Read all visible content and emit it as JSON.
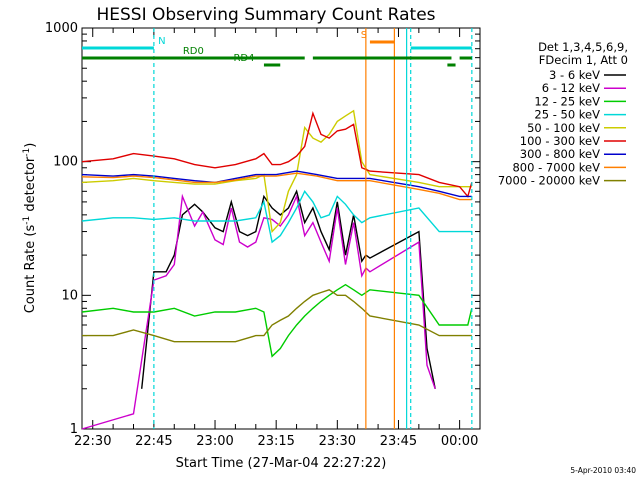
{
  "chart_data": {
    "type": "line",
    "title": "HESSI Observing Summary Count Rates",
    "xlabel": "Start Time (27-Mar-04 22:27:22)",
    "ylabel": "Count Rate (s",
    "ylabel_unit": "detector",
    "ylabel_exp": "-1",
    "y_scale": "log",
    "ylim": [
      1,
      1000
    ],
    "xlim": [
      "22:27:22",
      "00:05:00"
    ],
    "x_ticks": [
      "22:30",
      "22:45",
      "23:00",
      "23:15",
      "23:30",
      "23:45",
      "00:00"
    ],
    "y_ticks": [
      "1",
      "10",
      "100",
      "1000"
    ],
    "legend_placement": "right",
    "legend_header": [
      "Det 1,3,4,5,6,9,",
      "FDecim 1, Att 0"
    ],
    "series": [
      {
        "name": "3 - 6 keV",
        "color": "#000000",
        "x": [
          "22:42",
          "22:45",
          "22:48",
          "22:50",
          "22:52",
          "22:55",
          "22:57",
          "23:00",
          "23:02",
          "23:04",
          "23:06",
          "23:08",
          "23:10",
          "23:12",
          "23:14",
          "23:16",
          "23:18",
          "23:20",
          "23:22",
          "23:24",
          "23:26",
          "23:28",
          "23:30",
          "23:32",
          "23:34",
          "23:36",
          "23:37",
          "23:38",
          "23:50",
          "23:52",
          "23:54"
        ],
        "y": [
          2,
          15,
          15,
          20,
          40,
          48,
          42,
          32,
          30,
          50,
          30,
          28,
          30,
          55,
          45,
          40,
          45,
          60,
          35,
          45,
          30,
          22,
          50,
          20,
          40,
          18,
          20,
          19,
          30,
          4,
          2
        ]
      },
      {
        "name": "6 - 12 keV",
        "color": "#cc00cc",
        "x": [
          "22:27:22",
          "22:40",
          "22:45",
          "22:48",
          "22:50",
          "22:52",
          "22:55",
          "22:57",
          "23:00",
          "23:02",
          "23:04",
          "23:06",
          "23:08",
          "23:10",
          "23:12",
          "23:14",
          "23:16",
          "23:18",
          "23:20",
          "23:22",
          "23:24",
          "23:26",
          "23:28",
          "23:30",
          "23:32",
          "23:34",
          "23:36",
          "23:37",
          "23:38",
          "23:50",
          "23:52",
          "23:54"
        ],
        "y": [
          1,
          1.3,
          13,
          14,
          17,
          55,
          33,
          42,
          26,
          24,
          45,
          25,
          23,
          25,
          38,
          37,
          33,
          40,
          55,
          28,
          35,
          25,
          18,
          45,
          17,
          35,
          14,
          16,
          15,
          25,
          3,
          2
        ]
      },
      {
        "name": "12 - 25 keV",
        "color": "#00cc00",
        "x": [
          "22:27:22",
          "22:35",
          "22:40",
          "22:45",
          "22:50",
          "22:55",
          "23:00",
          "23:05",
          "23:10",
          "23:12",
          "23:14",
          "23:16",
          "23:18",
          "23:20",
          "23:22",
          "23:24",
          "23:26",
          "23:28",
          "23:30",
          "23:32",
          "23:34",
          "23:36",
          "23:38",
          "23:50",
          "23:55",
          "00:00",
          "00:02",
          "00:03"
        ],
        "y": [
          7.5,
          8,
          7.5,
          7.5,
          8,
          7,
          7.5,
          7.5,
          8,
          7.5,
          3.5,
          4,
          5,
          6,
          7,
          8,
          9,
          10,
          11,
          12,
          11,
          10,
          11,
          10,
          6,
          6,
          6,
          8
        ]
      },
      {
        "name": "25 - 50 keV",
        "color": "#00d8d8",
        "x": [
          "22:27:22",
          "22:35",
          "22:40",
          "22:45",
          "22:50",
          "22:55",
          "23:00",
          "23:05",
          "23:10",
          "23:12",
          "23:14",
          "23:16",
          "23:18",
          "23:20",
          "23:22",
          "23:24",
          "23:26",
          "23:28",
          "23:30",
          "23:32",
          "23:34",
          "23:36",
          "23:38",
          "23:50",
          "23:55",
          "00:00",
          "00:02",
          "00:03"
        ],
        "y": [
          36,
          38,
          38,
          37,
          38,
          36,
          36,
          36,
          38,
          50,
          25,
          28,
          35,
          45,
          60,
          50,
          38,
          40,
          55,
          48,
          40,
          35,
          38,
          45,
          30,
          30,
          30,
          30
        ]
      },
      {
        "name": "50 - 100 keV",
        "color": "#cccc00",
        "x": [
          "22:27:22",
          "22:35",
          "22:40",
          "22:45",
          "22:50",
          "22:55",
          "23:00",
          "23:05",
          "23:10",
          "23:12",
          "23:14",
          "23:16",
          "23:18",
          "23:20",
          "23:22",
          "23:24",
          "23:26",
          "23:28",
          "23:30",
          "23:32",
          "23:34",
          "23:36",
          "23:38",
          "23:50",
          "23:55",
          "00:00",
          "00:02",
          "00:03"
        ],
        "y": [
          70,
          72,
          75,
          72,
          70,
          68,
          68,
          72,
          75,
          80,
          30,
          35,
          60,
          80,
          180,
          150,
          140,
          160,
          200,
          220,
          240,
          100,
          80,
          70,
          65,
          65,
          65,
          65
        ]
      },
      {
        "name": "100 - 300 keV",
        "color": "#e00000",
        "x": [
          "22:27:22",
          "22:35",
          "22:40",
          "22:45",
          "22:50",
          "22:55",
          "23:00",
          "23:05",
          "23:10",
          "23:12",
          "23:14",
          "23:16",
          "23:18",
          "23:20",
          "23:22",
          "23:24",
          "23:26",
          "23:28",
          "23:30",
          "23:32",
          "23:34",
          "23:36",
          "23:38",
          "23:50",
          "23:55",
          "00:00",
          "00:02",
          "00:03"
        ],
        "y": [
          100,
          105,
          115,
          110,
          105,
          95,
          90,
          95,
          105,
          115,
          95,
          95,
          100,
          110,
          130,
          230,
          160,
          150,
          170,
          175,
          190,
          90,
          85,
          80,
          70,
          65,
          55,
          70
        ]
      },
      {
        "name": "300 - 800 keV",
        "color": "#0000cc",
        "x": [
          "22:27:22",
          "22:35",
          "22:40",
          "22:45",
          "22:50",
          "22:55",
          "23:00",
          "23:05",
          "23:10",
          "23:15",
          "23:20",
          "23:25",
          "23:30",
          "23:35",
          "23:38",
          "23:50",
          "23:55",
          "00:00",
          "00:02",
          "00:03"
        ],
        "y": [
          80,
          78,
          80,
          78,
          75,
          72,
          70,
          75,
          80,
          80,
          85,
          80,
          75,
          75,
          75,
          65,
          60,
          55,
          55,
          55
        ]
      },
      {
        "name": "800 - 7000 keV",
        "color": "#ff7f00",
        "x": [
          "22:27:22",
          "22:35",
          "22:40",
          "22:45",
          "22:50",
          "22:55",
          "23:00",
          "23:05",
          "23:10",
          "23:15",
          "23:20",
          "23:25",
          "23:30",
          "23:35",
          "23:38",
          "23:50",
          "23:55",
          "00:00",
          "00:02",
          "00:03"
        ],
        "y": [
          77,
          76,
          78,
          76,
          73,
          70,
          70,
          73,
          78,
          78,
          82,
          78,
          72,
          72,
          72,
          62,
          58,
          52,
          52,
          52
        ]
      },
      {
        "name": "7000 - 20000 keV",
        "color": "#808000",
        "x": [
          "22:27:22",
          "22:35",
          "22:40",
          "22:45",
          "22:50",
          "22:55",
          "23:00",
          "23:05",
          "23:10",
          "23:12",
          "23:14",
          "23:16",
          "23:18",
          "23:20",
          "23:22",
          "23:24",
          "23:26",
          "23:28",
          "23:30",
          "23:32",
          "23:34",
          "23:36",
          "23:38",
          "23:50",
          "23:55",
          "00:00",
          "00:02",
          "00:03"
        ],
        "y": [
          5,
          5,
          5.5,
          5,
          4.5,
          4.5,
          4.5,
          4.5,
          5,
          5,
          6,
          6.5,
          7,
          8,
          9,
          10,
          10.5,
          11,
          10,
          10,
          9,
          8,
          7,
          6,
          5,
          5,
          5,
          5
        ]
      }
    ],
    "flag_bars": [
      {
        "label": "N",
        "color": "#00d8d8",
        "segments": [
          [
            "22:27:22",
            "22:45"
          ],
          [
            "23:48",
            "00:03"
          ]
        ]
      },
      {
        "label": "S",
        "color": "#ff7f00",
        "segments": [
          [
            "23:38",
            "23:44"
          ]
        ]
      },
      {
        "label": "RD0",
        "color": "#008000",
        "segments": [
          [
            "22:27:22",
            "23:22"
          ],
          [
            "23:24",
            "23:58"
          ],
          [
            "00:00",
            "00:03"
          ]
        ]
      },
      {
        "label": "RD4",
        "color": "#008000",
        "segments": [
          [
            "23:12",
            "23:16"
          ],
          [
            "23:57",
            "23:59"
          ]
        ]
      }
    ],
    "vertical_lines": [
      {
        "time": "22:45",
        "color": "#00d8d8",
        "style": "dashed"
      },
      {
        "time": "23:37",
        "color": "#ff7f00",
        "style": "solid"
      },
      {
        "time": "23:44",
        "color": "#ff7f00",
        "style": "solid"
      },
      {
        "time": "23:47",
        "color": "#00d8d8",
        "style": "solid"
      },
      {
        "time": "23:48",
        "color": "#00d8d8",
        "style": "dashed"
      },
      {
        "time": "00:03",
        "color": "#00d8d8",
        "style": "dashed"
      }
    ]
  },
  "footer": {
    "timestamp": "5-Apr-2010 03:40"
  }
}
